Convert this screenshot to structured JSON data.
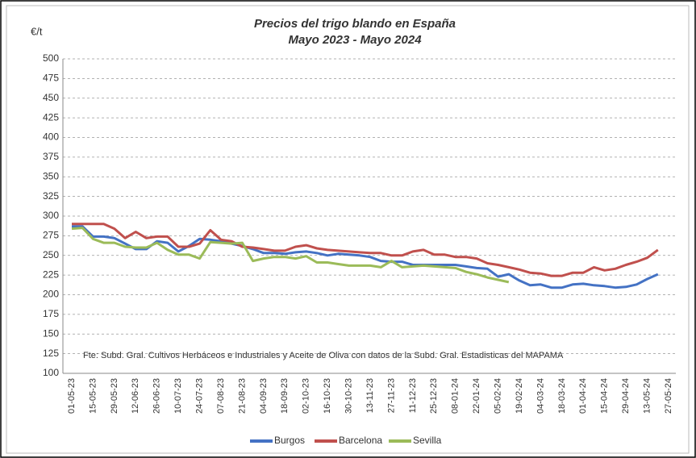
{
  "chart_data": {
    "type": "line",
    "title": "Precios del trigo blando en España",
    "subtitle": "Mayo 2023 - Mayo 2024",
    "y_label": "€/t",
    "annotation": "Fte: Subd. Gral. Cultivos Herbáceos e Industriales y Aceite de Oliva  con datos de la Subd. Gral. Estadisticas del MAPAMA",
    "categories": [
      "01-05-23",
      null,
      "15-05-23",
      null,
      "29-05-23",
      null,
      "12-06-23",
      null,
      "26-06-23",
      null,
      "10-07-23",
      null,
      "24-07-23",
      null,
      "07-08-23",
      null,
      "21-08-23",
      null,
      "04-09-23",
      null,
      "18-09-23",
      null,
      "02-10-23",
      null,
      "16-10-23",
      null,
      "30-10-23",
      null,
      "13-11-23",
      null,
      "27-11-23",
      null,
      "11-12-23",
      null,
      "25-12-23",
      null,
      "08-01-24",
      null,
      "22-01-24",
      null,
      "05-02-24",
      null,
      "19-02-24",
      null,
      "04-03-24",
      null,
      "18-03-24",
      null,
      "01-04-24",
      null,
      "15-04-24",
      null,
      "29-04-24",
      null,
      "13-05-24",
      null,
      "27-05-24"
    ],
    "series": [
      {
        "name": "Burgos",
        "color": "#4472c4",
        "values": [
          287,
          287,
          274,
          274,
          272,
          265,
          258,
          258,
          268,
          266,
          255,
          262,
          271,
          270,
          268,
          265,
          262,
          258,
          253,
          253,
          252,
          254,
          255,
          253,
          250,
          252,
          251,
          250,
          248,
          243,
          242,
          242,
          238,
          238,
          238,
          238,
          238,
          236,
          234,
          233,
          223,
          226,
          218,
          212,
          213,
          209,
          209,
          213,
          214,
          212,
          211,
          209,
          210,
          213,
          220,
          226,
          null
        ]
      },
      {
        "name": "Barcelona",
        "color": "#c0504d",
        "values": [
          290,
          290,
          290,
          290,
          284,
          272,
          280,
          272,
          274,
          274,
          261,
          261,
          265,
          282,
          270,
          268,
          261,
          260,
          258,
          256,
          256,
          261,
          263,
          259,
          257,
          256,
          255,
          254,
          253,
          253,
          250,
          250,
          255,
          257,
          251,
          251,
          248,
          248,
          246,
          240,
          238,
          235,
          232,
          228,
          227,
          224,
          224,
          228,
          228,
          235,
          231,
          233,
          238,
          242,
          247,
          257,
          null
        ]
      },
      {
        "name": "Sevilla",
        "color": "#9bbb59",
        "values": [
          284,
          285,
          271,
          266,
          266,
          261,
          260,
          260,
          266,
          257,
          251,
          251,
          246,
          267,
          266,
          265,
          266,
          243,
          246,
          248,
          248,
          246,
          249,
          241,
          241,
          239,
          237,
          237,
          237,
          235,
          243,
          235,
          236,
          237,
          236,
          235,
          234,
          229,
          226,
          222,
          219,
          216,
          null,
          null,
          null,
          null,
          null,
          null,
          null,
          null,
          null,
          null,
          null,
          null,
          null,
          null,
          null
        ]
      }
    ],
    "ylim": [
      100,
      500
    ],
    "yticks": [
      100,
      125,
      150,
      175,
      200,
      225,
      250,
      275,
      300,
      325,
      350,
      375,
      400,
      425,
      450,
      475,
      500
    ],
    "grid": true,
    "legend": "bottom"
  }
}
